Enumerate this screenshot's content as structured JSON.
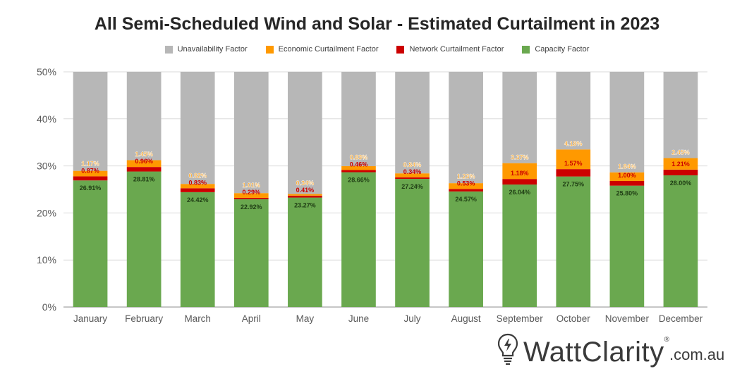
{
  "chart_data": {
    "type": "bar",
    "stacked": true,
    "title": "All Semi-Scheduled Wind and Solar - Estimated Curtailment in 2023",
    "xlabel": "",
    "ylabel": "",
    "ylim": [
      0,
      50
    ],
    "y_ticks": [
      "0%",
      "10%",
      "20%",
      "30%",
      "40%",
      "50%"
    ],
    "grid": true,
    "legend_position": "top",
    "categories": [
      "January",
      "February",
      "March",
      "April",
      "May",
      "June",
      "July",
      "August",
      "September",
      "October",
      "November",
      "December"
    ],
    "series": [
      {
        "name": "Capacity Factor",
        "color": "#6aa84f",
        "values": [
          26.91,
          28.81,
          24.42,
          22.92,
          23.27,
          28.66,
          27.24,
          24.57,
          26.04,
          27.75,
          25.8,
          28.0
        ],
        "labels": [
          "26.91%",
          "28.81%",
          "24.42%",
          "22.92%",
          "23.27%",
          "28.66%",
          "27.24%",
          "24.57%",
          "26.04%",
          "27.75%",
          "25.80%",
          "28.00%"
        ]
      },
      {
        "name": "Network Curtailment Factor",
        "color": "#cc0000",
        "values": [
          0.87,
          0.96,
          0.83,
          0.29,
          0.41,
          0.46,
          0.34,
          0.53,
          1.18,
          1.57,
          1.0,
          1.21
        ],
        "labels": [
          "0.87%",
          "0.96%",
          "0.83%",
          "0.29%",
          "0.41%",
          "0.46%",
          "0.34%",
          "0.53%",
          "1.18%",
          "1.57%",
          "1.00%",
          "1.21%"
        ]
      },
      {
        "name": "Economic Curtailment Factor",
        "color": "#ff9900",
        "values": [
          1.17,
          1.45,
          0.92,
          1.01,
          0.34,
          0.83,
          0.84,
          1.23,
          3.37,
          4.18,
          1.84,
          2.45
        ],
        "labels": [
          "1.17%",
          "1.45%",
          "0.92%",
          "1.01%",
          "0.34%",
          "0.83%",
          "0.84%",
          "1.23%",
          "3.37%",
          "4.18%",
          "1.84%",
          "2.45%"
        ]
      },
      {
        "name": "Unavailability Factor",
        "color": "#b7b7b7",
        "values": [
          21.05,
          18.78,
          23.83,
          25.78,
          25.98,
          20.05,
          21.58,
          23.67,
          19.41,
          16.5,
          21.36,
          18.34
        ],
        "labels": []
      }
    ],
    "legend_order": [
      "Unavailability Factor",
      "Economic Curtailment Factor",
      "Network Curtailment Factor",
      "Capacity Factor"
    ]
  },
  "brand": {
    "name": "WattClarity",
    "registered": "®",
    "domain": ".com.au",
    "icon": "lightbulb-bolt-icon"
  }
}
